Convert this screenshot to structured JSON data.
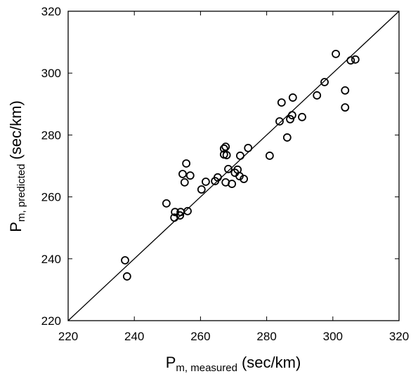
{
  "chart_data": {
    "type": "scatter",
    "x_label": {
      "main": "P",
      "sub": "m, measured",
      "unit": "(sec/km)"
    },
    "y_label": {
      "main": "P",
      "sub": "m, predicted",
      "unit": "(sec/km)"
    },
    "xlim": [
      220,
      320
    ],
    "ylim": [
      220,
      320
    ],
    "xticks": [
      220,
      240,
      260,
      280,
      300,
      320
    ],
    "yticks": [
      220,
      240,
      260,
      280,
      300,
      320
    ],
    "color": "#000000",
    "identity_line": true,
    "x": [
      237.2,
      237.8,
      249.7,
      252.3,
      252.1,
      253.8,
      254.0,
      256.1,
      254.6,
      255.7,
      255.2,
      256.9,
      260.3,
      261.6,
      264.4,
      265.2,
      267.1,
      267.6,
      267.1,
      267.9,
      267.6,
      268.4,
      269.5,
      270.4,
      271.2,
      271.8,
      273.1,
      272.0,
      274.4,
      280.9,
      283.9,
      284.5,
      286.2,
      287.1,
      287.7,
      287.9,
      290.7,
      295.2,
      297.5,
      300.9,
      303.7,
      303.7,
      305.4,
      306.8
    ],
    "values": [
      239.5,
      234.3,
      257.9,
      255.1,
      253.3,
      254.0,
      255.1,
      255.4,
      267.4,
      270.8,
      264.7,
      266.9,
      262.4,
      264.9,
      265.1,
      266.3,
      275.6,
      276.2,
      273.7,
      273.5,
      264.7,
      269.0,
      264.2,
      267.8,
      268.8,
      266.7,
      265.8,
      273.3,
      275.8,
      273.3,
      284.4,
      290.5,
      279.2,
      285.1,
      286.4,
      292.1,
      285.8,
      292.8,
      297.1,
      306.2,
      294.4,
      288.9,
      304.1,
      304.4
    ]
  }
}
